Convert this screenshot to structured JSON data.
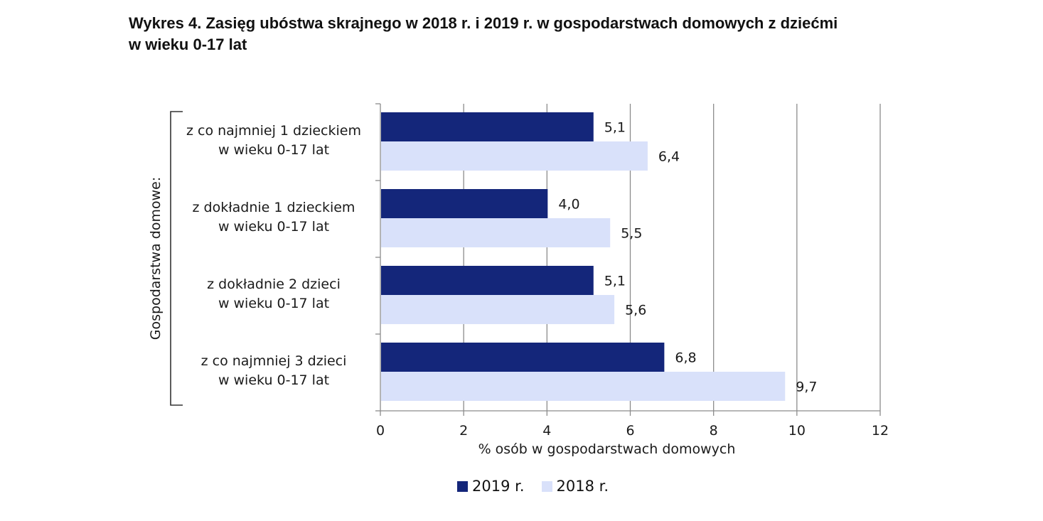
{
  "title": {
    "line1": "Wykres 4. Zasięg ubóstwa skrajnego w 2018 r. i 2019 r. w gospodarstwach domowych z dziećmi",
    "line2": "w wieku 0-17 lat"
  },
  "colors": {
    "series_2019": "#14267a",
    "series_2018": "#d9e1fa",
    "grid": "#8c8c8c",
    "axis": "#8c8c8c"
  },
  "chart_data": {
    "type": "bar",
    "orientation": "horizontal",
    "title": "Wykres 4. Zasięg ubóstwa skrajnego w 2018 r. i 2019 r. w gospodarstwach domowych z dziećmi w wieku 0-17 lat",
    "group_label": "Gospodarstwa domowe:",
    "categories": [
      [
        "z co najmniej 1 dzieckiem",
        "w wieku 0-17 lat"
      ],
      [
        "z dokładnie 1 dzieckiem",
        "w wieku 0-17 lat"
      ],
      [
        "z dokładnie 2 dzieci",
        "w wieku 0-17 lat"
      ],
      [
        "z co najmniej 3 dzieci",
        "w wieku 0-17 lat"
      ]
    ],
    "series": [
      {
        "name": "2019 r.",
        "values": [
          5.1,
          4.0,
          5.1,
          6.8
        ],
        "labels": [
          "5,1",
          "4,0",
          "5,1",
          "6,8"
        ]
      },
      {
        "name": "2018 r.",
        "values": [
          6.4,
          5.5,
          5.6,
          9.7
        ],
        "labels": [
          "6,4",
          "5,5",
          "5,6",
          "9,7"
        ]
      }
    ],
    "xlabel": "% osób w gospodarstwach domowych",
    "xlim": [
      0,
      12
    ],
    "xticks": [
      0,
      2,
      4,
      6,
      8,
      10,
      12
    ],
    "grid": true,
    "legend_position": "bottom-center"
  },
  "legend": {
    "item_2019": "2019 r.",
    "item_2018": "2018 r."
  }
}
